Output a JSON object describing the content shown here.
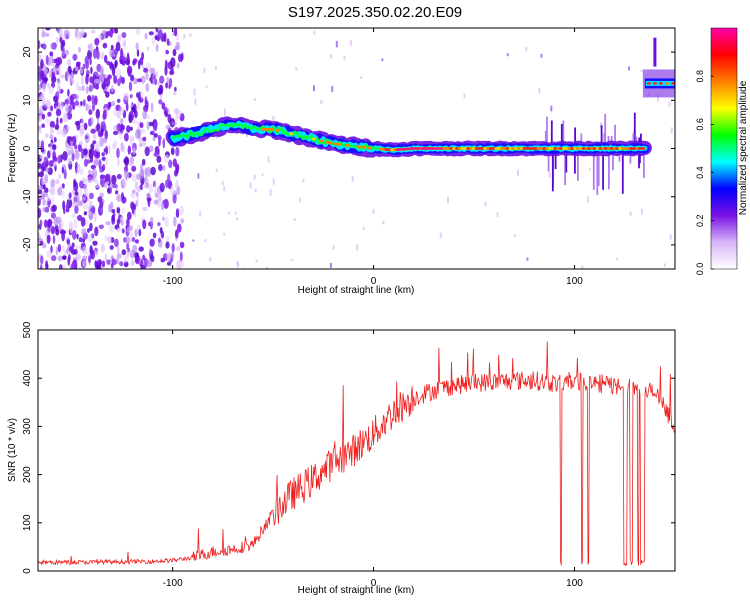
{
  "title": "S197.2025.350.02.20.E09",
  "chart_data": [
    {
      "type": "heatmap",
      "name": "spectrogram",
      "xlabel": "Height of straight line (km)",
      "ylabel": "Frequency (Hz)",
      "xlim": [
        -167,
        150
      ],
      "ylim": [
        -25,
        25
      ],
      "xticks": [
        -100,
        0,
        100
      ],
      "yticks": [
        -20,
        -10,
        0,
        10,
        20
      ],
      "colorbar": {
        "label": "Normalized spectral amplitude",
        "range": [
          0,
          1
        ],
        "ticks": [
          "0.0",
          "0.2",
          "0.4",
          "0.6",
          "0.8"
        ],
        "tick_values": [
          0,
          0.2,
          0.4,
          0.6,
          0.8
        ],
        "colormap": [
          "#ffffff",
          "#d8b4f8",
          "#7a12e6",
          "#0000ff",
          "#00ffff",
          "#00ff00",
          "#ffff00",
          "#ff8000",
          "#ff0000",
          "#ff00aa"
        ]
      },
      "ridge": {
        "x": [
          -100,
          -90,
          -80,
          -70,
          -60,
          -50,
          -40,
          -30,
          -20,
          -10,
          0,
          10,
          20,
          40,
          60,
          80,
          100,
          120,
          135
        ],
        "frequency": [
          2,
          3,
          4,
          5,
          4,
          4,
          3,
          2,
          1,
          0.5,
          0,
          -0.3,
          0,
          0,
          0,
          0,
          0,
          0,
          0
        ]
      },
      "late_band": {
        "x": [
          135,
          150
        ],
        "frequency": 13.5
      },
      "noise_region_x": [
        -167,
        -95
      ]
    },
    {
      "type": "line",
      "name": "snr",
      "xlabel": "Height of straight line (km)",
      "ylabel": "SNR (10 * v/v)",
      "xlim": [
        -167,
        150
      ],
      "ylim": [
        0,
        500
      ],
      "xticks": [
        -100,
        0,
        100
      ],
      "yticks": [
        0,
        100,
        200,
        300,
        400,
        500
      ],
      "color": "#ee2020",
      "series": [
        {
          "name": "SNR",
          "x": [
            -167,
            -150,
            -130,
            -110,
            -100,
            -90,
            -80,
            -70,
            -60,
            -50,
            -45,
            -40,
            -30,
            -20,
            -10,
            0,
            10,
            20,
            30,
            40,
            50,
            60,
            70,
            80,
            90,
            100,
            110,
            120,
            130,
            140,
            150
          ],
          "values": [
            18,
            18,
            19,
            20,
            22,
            28,
            40,
            45,
            55,
            120,
            140,
            160,
            190,
            225,
            250,
            285,
            330,
            360,
            375,
            385,
            390,
            392,
            395,
            395,
            390,
            395,
            390,
            385,
            380,
            370,
            300
          ],
          "dropout_region_x": [
            91,
            147
          ],
          "dropout_value": 18
        }
      ]
    }
  ]
}
